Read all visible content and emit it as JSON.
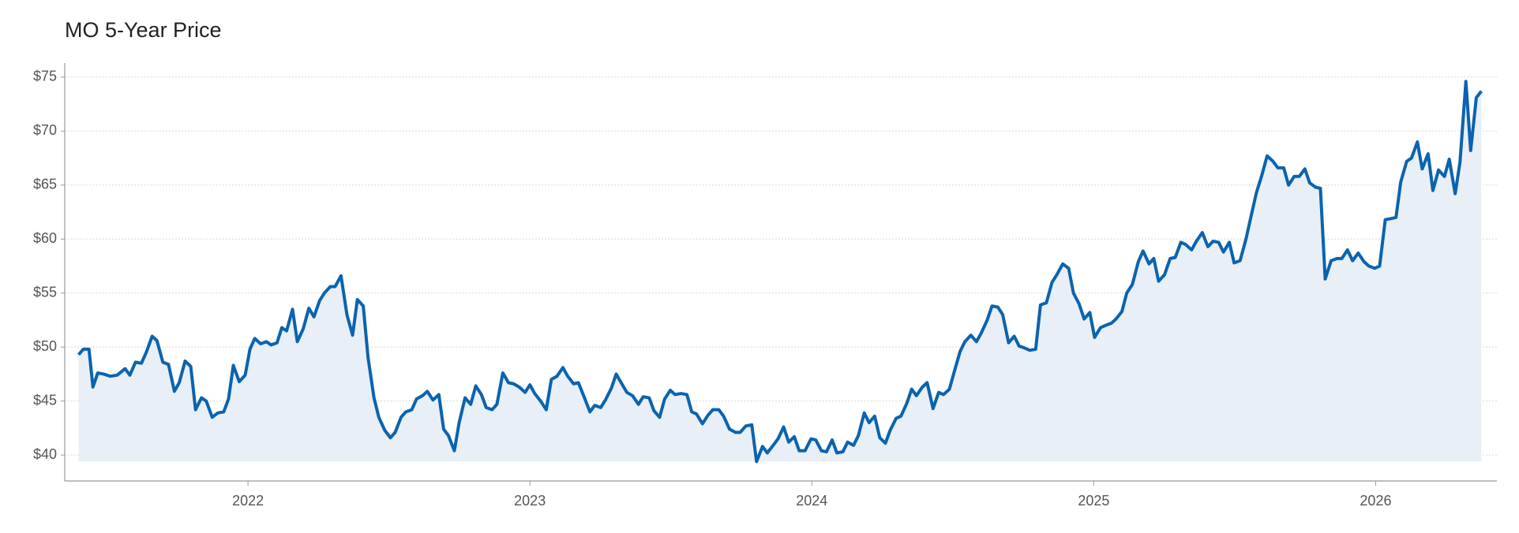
{
  "chart_data": {
    "type": "area",
    "title": "MO 5-Year Price",
    "x": [
      2021.399,
      2021.416,
      2021.436,
      2021.45,
      2021.467,
      2021.488,
      2021.512,
      2021.536,
      2021.564,
      2021.581,
      2021.601,
      2021.622,
      2021.639,
      2021.66,
      2021.677,
      2021.698,
      2021.718,
      2021.739,
      2021.756,
      2021.777,
      2021.797,
      2021.814,
      2021.835,
      2021.852,
      2021.873,
      2021.893,
      2021.914,
      2021.931,
      2021.948,
      2021.969,
      2021.99,
      2022.007,
      2022.024,
      2022.045,
      2022.065,
      2022.082,
      2022.103,
      2022.12,
      2022.137,
      2022.158,
      2022.175,
      2022.196,
      2022.216,
      2022.234,
      2022.254,
      2022.271,
      2022.292,
      2022.309,
      2022.33,
      2022.351,
      2022.371,
      2022.388,
      2022.409,
      2022.426,
      2022.447,
      2022.464,
      2022.485,
      2022.505,
      2022.522,
      2022.543,
      2022.56,
      2022.581,
      2022.598,
      2022.619,
      2022.636,
      2022.656,
      2022.677,
      2022.694,
      2022.711,
      2022.732,
      2022.749,
      2022.77,
      2022.79,
      2022.808,
      2022.828,
      2022.845,
      2022.866,
      2022.883,
      2022.904,
      2022.924,
      2022.942,
      2022.962,
      2022.983,
      2023.0,
      2023.017,
      2023.038,
      2023.058,
      2023.076,
      2023.096,
      2023.117,
      2023.134,
      2023.155,
      2023.172,
      2023.192,
      2023.213,
      2023.23,
      2023.251,
      2023.268,
      2023.289,
      2023.306,
      2023.326,
      2023.344,
      2023.364,
      2023.385,
      2023.402,
      2023.423,
      2023.44,
      2023.46,
      2023.478,
      2023.498,
      2023.515,
      2023.536,
      2023.557,
      2023.574,
      2023.591,
      2023.612,
      2023.632,
      2023.649,
      2023.67,
      2023.687,
      2023.708,
      2023.729,
      2023.746,
      2023.766,
      2023.787,
      2023.804,
      2023.825,
      2023.842,
      2023.863,
      2023.88,
      2023.9,
      2023.918,
      2023.938,
      2023.955,
      2023.976,
      2023.997,
      2024.014,
      2024.034,
      2024.052,
      2024.072,
      2024.089,
      2024.11,
      2024.127,
      2024.148,
      2024.165,
      2024.186,
      2024.203,
      2024.223,
      2024.241,
      2024.261,
      2024.278,
      2024.299,
      2024.316,
      2024.337,
      2024.354,
      2024.371,
      2024.392,
      2024.409,
      2024.43,
      2024.45,
      2024.467,
      2024.488,
      2024.505,
      2024.526,
      2024.543,
      2024.564,
      2024.584,
      2024.601,
      2024.622,
      2024.639,
      2024.66,
      2024.677,
      2024.698,
      2024.718,
      2024.735,
      2024.756,
      2024.773,
      2024.794,
      2024.811,
      2024.832,
      2024.852,
      2024.869,
      2024.89,
      2024.911,
      2024.928,
      2024.948,
      2024.966,
      2024.986,
      2025.003,
      2025.024,
      2025.041,
      2025.062,
      2025.079,
      2025.1,
      2025.117,
      2025.137,
      2025.158,
      2025.175,
      2025.196,
      2025.213,
      2025.23,
      2025.251,
      2025.271,
      2025.289,
      2025.309,
      2025.326,
      2025.347,
      2025.364,
      2025.385,
      2025.405,
      2025.423,
      2025.443,
      2025.46,
      2025.481,
      2025.498,
      2025.519,
      2025.54,
      2025.557,
      2025.577,
      2025.595,
      2025.615,
      2025.636,
      2025.653,
      2025.674,
      2025.691,
      2025.711,
      2025.729,
      2025.749,
      2025.766,
      2025.787,
      2025.804,
      2025.821,
      2025.842,
      2025.863,
      2025.88,
      2025.9,
      2025.918,
      2025.938,
      2025.959,
      2025.976,
      2025.997,
      2026.014,
      2026.034,
      2026.055,
      2026.072,
      2026.089,
      2026.11,
      2026.127,
      2026.148,
      2026.165,
      2026.186,
      2026.203,
      2026.223,
      2026.244,
      2026.261,
      2026.282,
      2026.299,
      2026.32,
      2026.337,
      2026.357,
      2026.375
    ],
    "values": [
      49.3,
      49.8,
      49.8,
      46.3,
      47.6,
      47.5,
      47.3,
      47.4,
      48.0,
      47.4,
      48.6,
      48.5,
      49.5,
      51.0,
      50.6,
      48.6,
      48.4,
      45.9,
      46.7,
      48.7,
      48.2,
      44.2,
      45.3,
      45.0,
      43.5,
      43.9,
      44.0,
      45.2,
      48.3,
      46.8,
      47.4,
      49.8,
      50.8,
      50.3,
      50.5,
      50.2,
      50.4,
      51.8,
      51.5,
      53.5,
      50.5,
      51.7,
      53.6,
      52.8,
      54.3,
      55.0,
      55.6,
      55.6,
      56.6,
      53.0,
      51.1,
      54.4,
      53.8,
      49.0,
      45.3,
      43.5,
      42.3,
      41.6,
      42.1,
      43.5,
      44.0,
      44.2,
      45.2,
      45.5,
      45.9,
      45.1,
      45.6,
      42.4,
      41.8,
      40.4,
      43.0,
      45.3,
      44.7,
      46.4,
      45.6,
      44.4,
      44.2,
      44.7,
      47.6,
      46.7,
      46.6,
      46.3,
      45.8,
      46.5,
      45.7,
      45.0,
      44.2,
      47.0,
      47.3,
      48.1,
      47.3,
      46.6,
      46.7,
      45.4,
      44.0,
      44.6,
      44.4,
      45.1,
      46.2,
      47.5,
      46.6,
      45.8,
      45.5,
      44.7,
      45.4,
      45.3,
      44.1,
      43.5,
      45.2,
      46.0,
      45.6,
      45.7,
      45.6,
      44.0,
      43.8,
      42.9,
      43.7,
      44.2,
      44.2,
      43.6,
      42.4,
      42.1,
      42.1,
      42.7,
      42.8,
      39.4,
      40.8,
      40.2,
      40.9,
      41.5,
      42.6,
      41.2,
      41.7,
      40.4,
      40.4,
      41.5,
      41.4,
      40.4,
      40.3,
      41.4,
      40.2,
      40.3,
      41.2,
      40.9,
      41.8,
      43.9,
      43.0,
      43.6,
      41.6,
      41.1,
      42.3,
      43.4,
      43.6,
      44.8,
      46.1,
      45.5,
      46.3,
      46.7,
      44.3,
      45.8,
      45.6,
      46.1,
      47.7,
      49.6,
      50.5,
      51.1,
      50.5,
      51.3,
      52.5,
      53.8,
      53.7,
      53.0,
      50.4,
      51.0,
      50.1,
      49.9,
      49.7,
      49.8,
      53.9,
      54.1,
      56.0,
      56.7,
      57.7,
      57.3,
      55.0,
      54.0,
      52.6,
      53.2,
      50.9,
      51.8,
      52.0,
      52.2,
      52.6,
      53.3,
      55.0,
      55.8,
      57.9,
      58.9,
      57.7,
      58.2,
      56.1,
      56.7,
      58.2,
      58.3,
      59.7,
      59.5,
      59.0,
      59.8,
      60.6,
      59.3,
      59.8,
      59.7,
      58.8,
      59.7,
      57.8,
      58.0,
      60.0,
      62.0,
      64.3,
      65.8,
      67.7,
      67.2,
      66.6,
      66.6,
      65.0,
      65.8,
      65.8,
      66.5,
      65.2,
      64.8,
      64.7,
      56.3,
      58.0,
      58.2,
      58.2,
      59.0,
      58.0,
      58.7,
      57.9,
      57.5,
      57.3,
      57.5,
      61.8,
      61.9,
      62.0,
      65.3,
      67.2,
      67.5,
      69.0,
      66.5,
      67.9,
      64.5,
      66.4,
      65.8,
      67.4,
      64.2,
      67.1,
      74.6,
      68.2,
      73.1,
      73.7
    ],
    "color": "#0b63ae",
    "fill_color": "#e8eff7",
    "xlim": [
      2021.35,
      2026.43
    ],
    "xticks": [
      2022,
      2023,
      2024,
      2025,
      2026
    ],
    "ylim": [
      37.6,
      76.3
    ],
    "yticks": [
      {
        "value": 40,
        "label": "$40"
      },
      {
        "value": 45,
        "label": "$45"
      },
      {
        "value": 50,
        "label": "$50"
      },
      {
        "value": 55,
        "label": "$55"
      },
      {
        "value": 60,
        "label": "$60"
      },
      {
        "value": 65,
        "label": "$65"
      },
      {
        "value": 70,
        "label": "$70"
      },
      {
        "value": 75,
        "label": "$75"
      }
    ],
    "grid": true
  }
}
